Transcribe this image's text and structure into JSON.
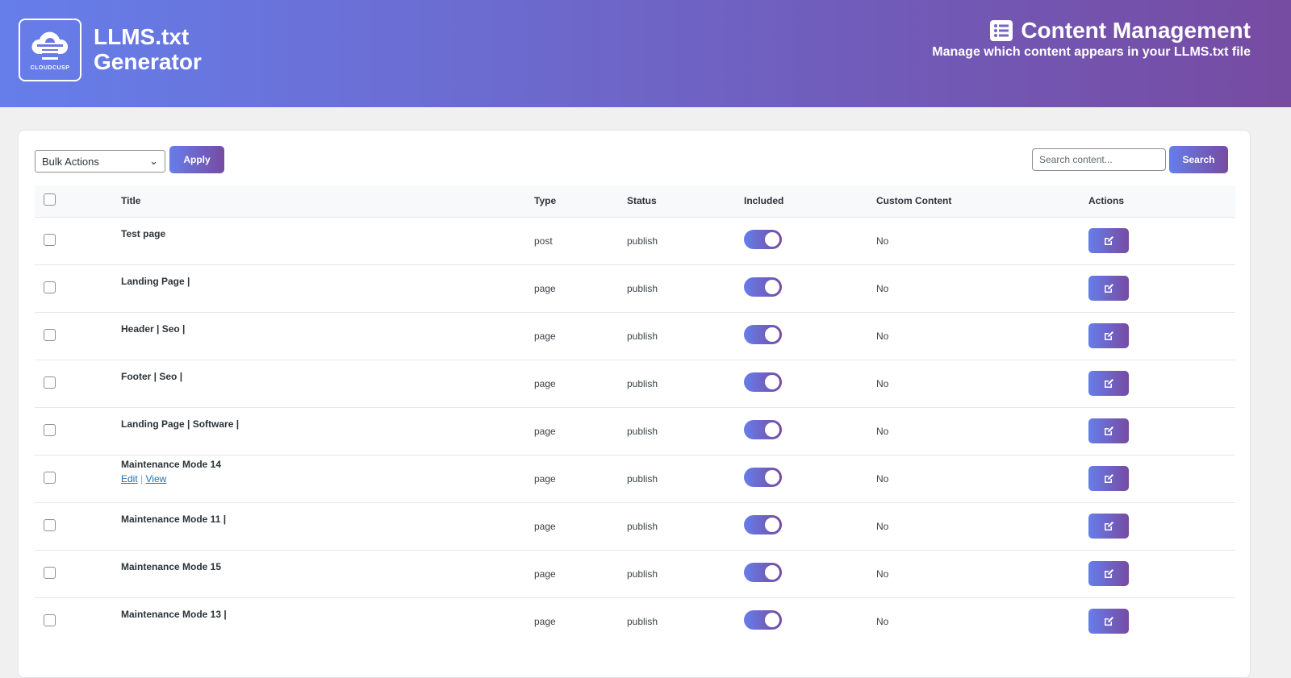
{
  "header": {
    "logo_text": "CLOUDCUSP",
    "brand_line1": "LLMS.txt",
    "brand_line2": "Generator",
    "title": "Content Management",
    "title_icon": "list-icon",
    "subtitle": "Manage which content appears in your LLMS.txt file",
    "gradient": [
      "#667eea",
      "#764ba2"
    ]
  },
  "toolbar": {
    "bulk_actions": "Bulk Actions",
    "apply": "Apply",
    "search_placeholder": "Search content...",
    "search": "Search"
  },
  "table": {
    "columns": [
      "Title",
      "Type",
      "Status",
      "Included",
      "Custom Content",
      "Actions"
    ],
    "rows": [
      {
        "title": "Test page",
        "type": "post",
        "status": "publish",
        "included": true,
        "custom": "No"
      },
      {
        "title": "Landing Page |",
        "type": "page",
        "status": "publish",
        "included": true,
        "custom": "No"
      },
      {
        "title": "Header | Seo |",
        "type": "page",
        "status": "publish",
        "included": true,
        "custom": "No"
      },
      {
        "title": "Footer | Seo |",
        "type": "page",
        "status": "publish",
        "included": true,
        "custom": "No"
      },
      {
        "title": "Landing Page | Software |",
        "type": "page",
        "status": "publish",
        "included": true,
        "custom": "No"
      },
      {
        "title": "Maintenance Mode 14",
        "type": "page",
        "status": "publish",
        "included": true,
        "custom": "No",
        "row_actions": {
          "edit": "Edit",
          "sep": "|",
          "view": "View"
        }
      },
      {
        "title": "Maintenance Mode 11 |",
        "type": "page",
        "status": "publish",
        "included": true,
        "custom": "No"
      },
      {
        "title": "Maintenance Mode 15",
        "type": "page",
        "status": "publish",
        "included": true,
        "custom": "No"
      },
      {
        "title": "Maintenance Mode 13 |",
        "type": "page",
        "status": "publish",
        "included": true,
        "custom": "No"
      }
    ]
  }
}
